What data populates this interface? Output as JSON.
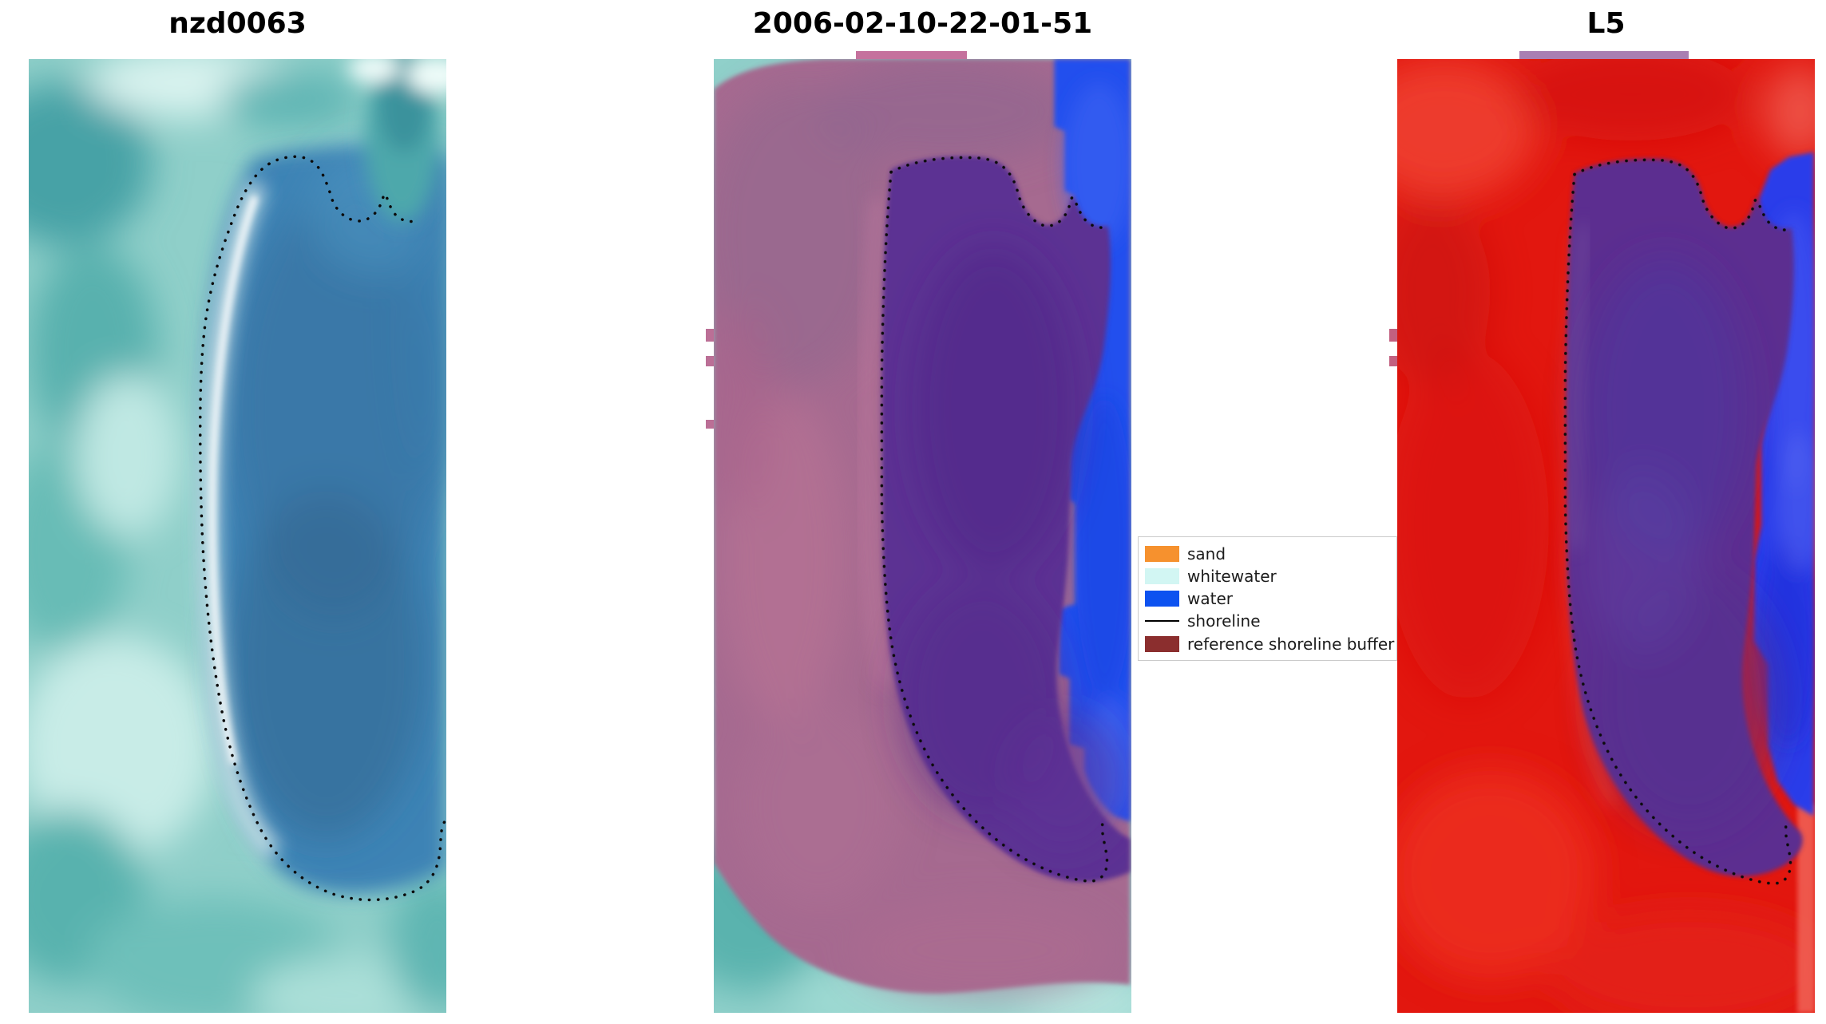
{
  "figure": {
    "background": "#ffffff",
    "panels": [
      {
        "title": "nzd0063"
      },
      {
        "title": "2006-02-10-22-01-51"
      },
      {
        "title": "L5"
      }
    ],
    "legend": {
      "items": [
        {
          "label": "sand",
          "color": "#f6912e",
          "type": "patch"
        },
        {
          "label": "whitewater",
          "color": "#d2f6f3",
          "type": "patch"
        },
        {
          "label": "water",
          "color": "#0d52f0",
          "type": "patch"
        },
        {
          "label": "shoreline",
          "color": "#000000",
          "type": "line"
        },
        {
          "label": "reference shoreline buffer",
          "color": "#8b2e2e",
          "type": "patch"
        }
      ]
    }
  },
  "chart_data": {
    "type": "heatmap",
    "title": "",
    "panels": [
      {
        "title": "nzd0063",
        "kind": "RGB satellite image crop with dotted detected shoreline"
      },
      {
        "title": "2006-02-10-22-01-51",
        "kind": "classified image: water class, reference shoreline buffer overlay, dotted shoreline"
      },
      {
        "title": "L5",
        "kind": "classified view: water class, reference shoreline buffer overlay, dotted shoreline"
      }
    ],
    "legend_entries": [
      "sand",
      "whitewater",
      "water",
      "shoreline",
      "reference shoreline buffer"
    ],
    "colors": {
      "sand": "#f6912e",
      "whitewater": "#d2f6f3",
      "water": "#0d52f0",
      "shoreline": "#000000",
      "reference_shoreline_buffer": "#8b2e2e"
    }
  }
}
